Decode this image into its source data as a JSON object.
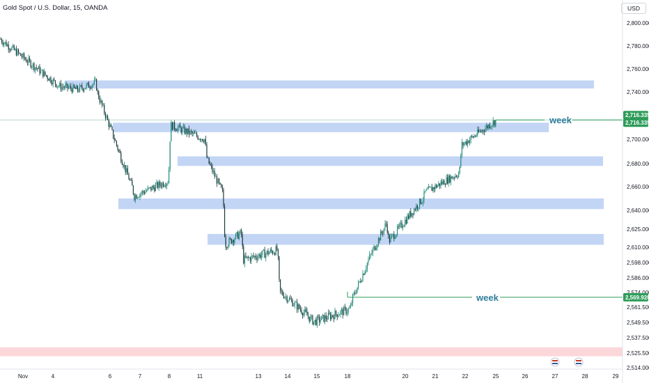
{
  "header": {
    "title": "Gold Spot / U.S. Dollar, 15, OANDA",
    "currency": "USD"
  },
  "colors": {
    "zone_blue": "#c3d5f5",
    "zone_red": "#fbd7da",
    "candle_up": "#1f8a7a",
    "candle_down": "#1a3a3a",
    "week_line": "#2e9c5a",
    "week_text": "#2e7d9a",
    "price_tag": "#2e9c5a",
    "axis_text": "#131722"
  },
  "chart_data": {
    "type": "line",
    "title": "Gold Spot / U.S. Dollar, 15, OANDA",
    "yaxis_ticks": [
      "2,800.000",
      "2,780.000",
      "2,760.000",
      "2,740.000",
      "2,700.000",
      "2,680.000",
      "2,660.000",
      "2,640.000",
      "2,625.000",
      "2,610.000",
      "2,598.000",
      "2,586.000",
      "2,574.000",
      "2,561.500",
      "2,549.500",
      "2,537.500",
      "2,525.500",
      "2,514.000"
    ],
    "xaxis_ticks": [
      "Nov",
      "4",
      "6",
      "7",
      "8",
      "11",
      "13",
      "14",
      "15",
      "18",
      "20",
      "21",
      "22",
      "25",
      "26",
      "27",
      "28",
      "29"
    ],
    "price_tags": [
      "2,716.335",
      "2,716.335",
      "2,569.920"
    ],
    "annotations": [
      "week",
      "week"
    ],
    "series": [
      {
        "x": [
          "Nov 1",
          "Nov 4",
          "Nov 5",
          "Nov 6",
          "Nov 6",
          "Nov 7",
          "Nov 7",
          "Nov 8",
          "Nov 8",
          "Nov 11",
          "Nov 11",
          "Nov 12",
          "Nov 12",
          "Nov 13",
          "Nov 13",
          "Nov 14",
          "Nov 14",
          "Nov 15",
          "Nov 18",
          "Nov 18",
          "Nov 19",
          "Nov 20",
          "Nov 20",
          "Nov 21",
          "Nov 21",
          "Nov 22",
          "Nov 22",
          "Nov 25"
        ],
        "y": [
          2786,
          2745,
          2742,
          2748,
          2738,
          2660,
          2652,
          2665,
          2712,
          2700,
          2684,
          2654,
          2612,
          2622,
          2600,
          2608,
          2575,
          2550,
          2560,
          2569,
          2600,
          2630,
          2615,
          2650,
          2655,
          2672,
          2695,
          2716
        ]
      }
    ]
  }
}
